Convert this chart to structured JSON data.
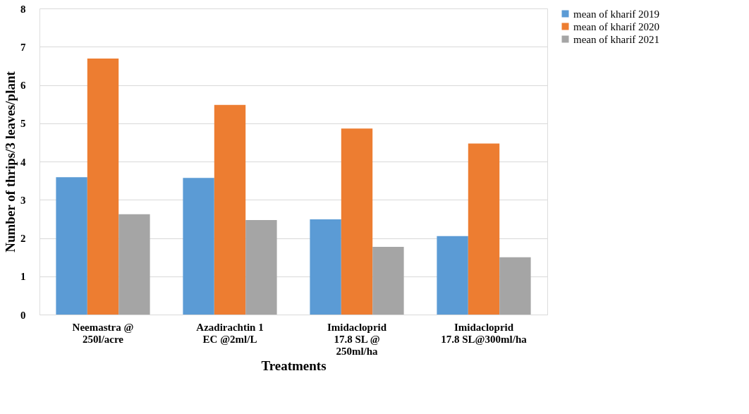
{
  "chart_data": {
    "type": "bar",
    "xlabel": "Treatments",
    "ylabel": "Number of thrips/3 leaves/plant",
    "categories": [
      "Neemastra @ 250l/acre",
      "Azadirachtin 1 EC @2ml/L",
      "Imidacloprid 17.8 SL @ 250ml/ha",
      "Imidacloprid 17.8 SL@300ml/ha"
    ],
    "series": [
      {
        "name": "mean of kharif 2019",
        "color": "#5b9bd5",
        "values": [
          3.59,
          3.57,
          2.49,
          2.05
        ]
      },
      {
        "name": "mean of kharif 2020",
        "color": "#ed7d31",
        "values": [
          6.69,
          5.48,
          4.86,
          4.47
        ]
      },
      {
        "name": "mean of kharif 2021",
        "color": "#a5a5a5",
        "values": [
          2.62,
          2.47,
          1.77,
          1.5
        ]
      }
    ],
    "ylim": [
      0,
      8
    ],
    "yticks": [
      0,
      1,
      2,
      3,
      4,
      5,
      6,
      7,
      8
    ],
    "grid": "y",
    "legend": "right"
  }
}
